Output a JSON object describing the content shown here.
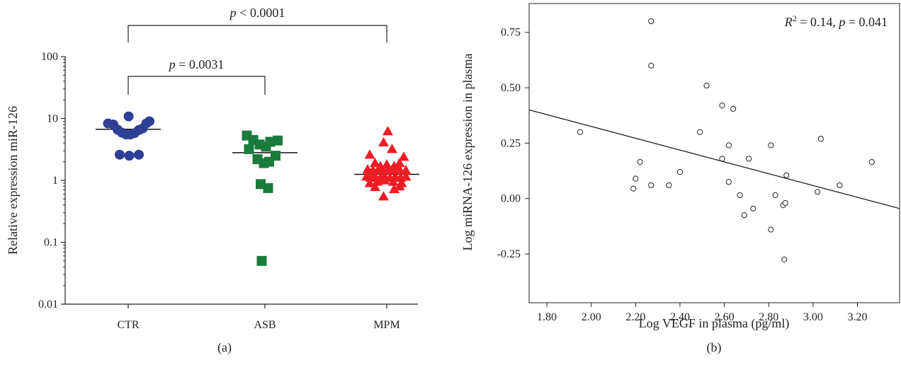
{
  "chart_data": [
    {
      "id": "a",
      "type": "scatter",
      "panel_caption": "(a)",
      "ylabel": "Relative expression miR-126",
      "y_scale": "log",
      "ylim": [
        0.01,
        100
      ],
      "y_ticks": [
        "0.01",
        "0.1",
        "1",
        "10",
        "100"
      ],
      "categories": [
        "CTR",
        "ASB",
        "MPM"
      ],
      "series": [
        {
          "category": "CTR",
          "marker": "circle",
          "color": "#2e3f94",
          "median": 6.7,
          "points": [
            {
              "offset": -0.95,
              "value": 8.3
            },
            {
              "offset": -0.7,
              "value": 8.0
            },
            {
              "offset": -0.5,
              "value": 6.6
            },
            {
              "offset": -0.3,
              "value": 5.9
            },
            {
              "offset": -0.1,
              "value": 5.5
            },
            {
              "offset": 0.1,
              "value": 5.5
            },
            {
              "offset": 0.3,
              "value": 5.8
            },
            {
              "offset": 0.5,
              "value": 6.5
            },
            {
              "offset": 0.68,
              "value": 6.9
            },
            {
              "offset": 0.85,
              "value": 8.3
            },
            {
              "offset": 1.0,
              "value": 9.0
            },
            {
              "offset": 0.02,
              "value": 10.8
            },
            {
              "offset": -0.4,
              "value": 2.6
            },
            {
              "offset": 0.05,
              "value": 2.5
            },
            {
              "offset": 0.5,
              "value": 2.6
            }
          ]
        },
        {
          "category": "ASB",
          "marker": "square",
          "color": "#1a7a3c",
          "median": 2.8,
          "points": [
            {
              "offset": -0.85,
              "value": 5.3
            },
            {
              "offset": -0.55,
              "value": 4.5
            },
            {
              "offset": -0.25,
              "value": 3.8
            },
            {
              "offset": 0.05,
              "value": 3.5
            },
            {
              "offset": 0.25,
              "value": 4.2
            },
            {
              "offset": 0.6,
              "value": 4.4
            },
            {
              "offset": -0.75,
              "value": 3.2
            },
            {
              "offset": -0.35,
              "value": 2.2
            },
            {
              "offset": -0.05,
              "value": 1.9
            },
            {
              "offset": 0.2,
              "value": 2.0
            },
            {
              "offset": 0.5,
              "value": 2.5
            },
            {
              "offset": -0.2,
              "value": 0.87
            },
            {
              "offset": 0.15,
              "value": 0.75
            },
            {
              "offset": -0.15,
              "value": 0.05
            }
          ]
        },
        {
          "category": "MPM",
          "marker": "triangle",
          "color": "#ee1c25",
          "median": 1.25,
          "points": [
            {
              "offset": 0.05,
              "value": 6.2
            },
            {
              "offset": -0.15,
              "value": 4.1
            },
            {
              "offset": 0.25,
              "value": 3.2
            },
            {
              "offset": -0.8,
              "value": 2.6
            },
            {
              "offset": 0.8,
              "value": 2.4
            },
            {
              "offset": -0.55,
              "value": 1.9
            },
            {
              "offset": -0.3,
              "value": 1.7
            },
            {
              "offset": 0.0,
              "value": 1.8
            },
            {
              "offset": 0.35,
              "value": 1.7
            },
            {
              "offset": 0.6,
              "value": 1.9
            },
            {
              "offset": -0.9,
              "value": 1.5
            },
            {
              "offset": -0.65,
              "value": 1.45
            },
            {
              "offset": -0.4,
              "value": 1.5
            },
            {
              "offset": -0.15,
              "value": 1.45
            },
            {
              "offset": 0.1,
              "value": 1.5
            },
            {
              "offset": 0.35,
              "value": 1.45
            },
            {
              "offset": 0.6,
              "value": 1.5
            },
            {
              "offset": 0.9,
              "value": 1.45
            },
            {
              "offset": -0.95,
              "value": 1.15
            },
            {
              "offset": -0.75,
              "value": 1.1
            },
            {
              "offset": -0.55,
              "value": 1.15
            },
            {
              "offset": -0.3,
              "value": 1.1
            },
            {
              "offset": -0.1,
              "value": 1.15
            },
            {
              "offset": 0.15,
              "value": 1.1
            },
            {
              "offset": 0.4,
              "value": 1.15
            },
            {
              "offset": 0.65,
              "value": 1.1
            },
            {
              "offset": 0.9,
              "value": 1.15
            },
            {
              "offset": -0.8,
              "value": 0.9
            },
            {
              "offset": -0.45,
              "value": 0.95
            },
            {
              "offset": -0.1,
              "value": 1.0
            },
            {
              "offset": 0.3,
              "value": 0.95
            },
            {
              "offset": 0.7,
              "value": 0.9
            },
            {
              "offset": -0.55,
              "value": 0.78
            },
            {
              "offset": 0.6,
              "value": 0.8
            },
            {
              "offset": 0.35,
              "value": 0.72
            },
            {
              "offset": -0.15,
              "value": 0.55
            }
          ]
        }
      ],
      "annotations": [
        {
          "from": "CTR",
          "to": "MPM",
          "level": "upper",
          "text": "p < 0.0001",
          "italic": "p",
          "rest": " < 0.0001"
        },
        {
          "from": "CTR",
          "to": "ASB",
          "level": "lower",
          "text": "p = 0.0031",
          "italic": "p",
          "rest": " = 0.0031"
        }
      ]
    },
    {
      "id": "b",
      "type": "scatter",
      "panel_caption": "(b)",
      "xlabel": "Log VEGF in plasma (pg/ml)",
      "ylabel": "Log miRNA-126 expression in plasma",
      "xlim": [
        1.72,
        3.39
      ],
      "ylim": [
        -0.47,
        0.88
      ],
      "x_ticks": [
        "1.80",
        "2.00",
        "2.20",
        "2.40",
        "2.60",
        "2.80",
        "3.00",
        "3.20"
      ],
      "y_ticks": [
        "-0.25",
        "0.00",
        "0.25",
        "0.50",
        "0.75"
      ],
      "stat_text": {
        "r_sym": "R",
        "r_sup": "2",
        "r_val": " = 0.14, ",
        "p_sym": "p",
        "p_val": " = 0.041"
      },
      "fit_line": {
        "x": [
          1.72,
          3.39
        ],
        "y": [
          0.4,
          -0.045
        ]
      },
      "points": [
        {
          "x": 1.95,
          "y": 0.3
        },
        {
          "x": 2.19,
          "y": 0.045
        },
        {
          "x": 2.2,
          "y": 0.09
        },
        {
          "x": 2.22,
          "y": 0.165
        },
        {
          "x": 2.27,
          "y": 0.8
        },
        {
          "x": 2.27,
          "y": 0.6
        },
        {
          "x": 2.27,
          "y": 0.06
        },
        {
          "x": 2.35,
          "y": 0.06
        },
        {
          "x": 2.4,
          "y": 0.12
        },
        {
          "x": 2.49,
          "y": 0.3
        },
        {
          "x": 2.52,
          "y": 0.51
        },
        {
          "x": 2.59,
          "y": 0.42
        },
        {
          "x": 2.59,
          "y": 0.18
        },
        {
          "x": 2.62,
          "y": 0.075
        },
        {
          "x": 2.62,
          "y": 0.24
        },
        {
          "x": 2.64,
          "y": 0.405
        },
        {
          "x": 2.67,
          "y": 0.015
        },
        {
          "x": 2.69,
          "y": -0.075
        },
        {
          "x": 2.71,
          "y": 0.18
        },
        {
          "x": 2.73,
          "y": -0.045
        },
        {
          "x": 2.81,
          "y": 0.24
        },
        {
          "x": 2.81,
          "y": -0.14
        },
        {
          "x": 2.83,
          "y": 0.015
        },
        {
          "x": 2.865,
          "y": -0.03
        },
        {
          "x": 2.875,
          "y": -0.02
        },
        {
          "x": 2.87,
          "y": -0.275
        },
        {
          "x": 2.88,
          "y": 0.105
        },
        {
          "x": 3.02,
          "y": 0.03
        },
        {
          "x": 3.035,
          "y": 0.27
        },
        {
          "x": 3.12,
          "y": 0.06
        },
        {
          "x": 3.265,
          "y": 0.165
        }
      ]
    }
  ]
}
